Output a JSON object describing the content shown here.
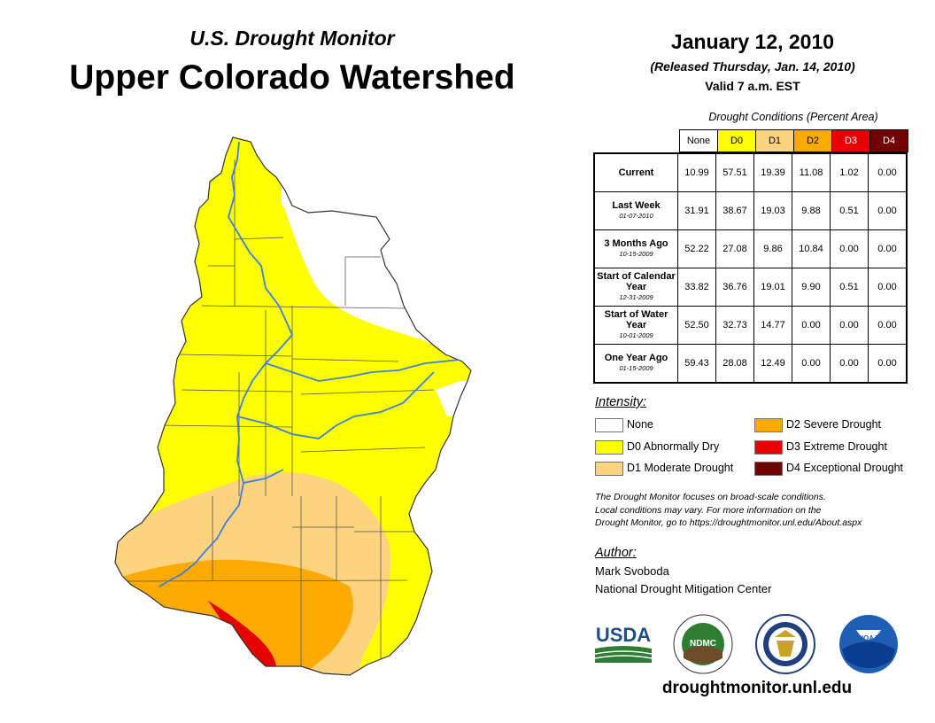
{
  "header": {
    "subtitle": "U.S. Drought Monitor",
    "title": "Upper Colorado Watershed",
    "date": "January 12, 2010",
    "released": "(Released Thursday, Jan. 14, 2010)",
    "valid": "Valid 7 a.m. EST"
  },
  "table": {
    "caption": "Drought Conditions (Percent Area)",
    "columns": [
      "None",
      "D0",
      "D1",
      "D2",
      "D3",
      "D4"
    ],
    "column_colors": [
      "#ffffff",
      "#ffff00",
      "#fcd37f",
      "#ffaa00",
      "#e60000",
      "#730000"
    ],
    "column_text_colors": [
      "#000000",
      "#000000",
      "#000000",
      "#000000",
      "#ffffff",
      "#ffffff"
    ],
    "rows": [
      {
        "label": "Current",
        "date": "",
        "values": [
          "10.99",
          "57.51",
          "19.39",
          "11.08",
          "1.02",
          "0.00"
        ]
      },
      {
        "label": "Last Week",
        "date": "01-07-2010",
        "values": [
          "31.91",
          "38.67",
          "19.03",
          "9.88",
          "0.51",
          "0.00"
        ]
      },
      {
        "label": "3 Months Ago",
        "date": "10-15-2009",
        "values": [
          "52.22",
          "27.08",
          "9.86",
          "10.84",
          "0.00",
          "0.00"
        ]
      },
      {
        "label": "Start of Calendar Year",
        "date": "12-31-2009",
        "values": [
          "33.82",
          "36.76",
          "19.01",
          "9.90",
          "0.51",
          "0.00"
        ]
      },
      {
        "label": "Start of Water Year",
        "date": "10-01-2009",
        "values": [
          "52.50",
          "32.73",
          "14.77",
          "0.00",
          "0.00",
          "0.00"
        ]
      },
      {
        "label": "One Year Ago",
        "date": "01-15-2009",
        "values": [
          "59.43",
          "28.08",
          "12.49",
          "0.00",
          "0.00",
          "0.00"
        ]
      }
    ]
  },
  "legend": {
    "title": "Intensity:",
    "items": [
      {
        "label": "None",
        "color": "#ffffff"
      },
      {
        "label": "D0 Abnormally Dry",
        "color": "#ffff00"
      },
      {
        "label": "D1 Moderate Drought",
        "color": "#fcd37f"
      },
      {
        "label": "D2 Severe Drought",
        "color": "#ffaa00"
      },
      {
        "label": "D3 Extreme Drought",
        "color": "#e60000"
      },
      {
        "label": "D4 Exceptional Drought",
        "color": "#730000"
      }
    ]
  },
  "note": {
    "line1": "The Drought Monitor focuses on broad-scale conditions.",
    "line2": "Local conditions may vary. For more information on the",
    "line3": "Drought Monitor, go to https://droughtmonitor.unl.edu/About.aspx"
  },
  "author": {
    "title": "Author:",
    "name": "Mark Svoboda",
    "org": "National Drought Mitigation Center"
  },
  "logos": {
    "usda": "USDA",
    "ndmc": "NDMC",
    "noaa": "NOAA"
  },
  "website": "droughtmonitor.unl.edu",
  "map_colors": {
    "river": "#3f7fdf",
    "border": "#333333"
  }
}
